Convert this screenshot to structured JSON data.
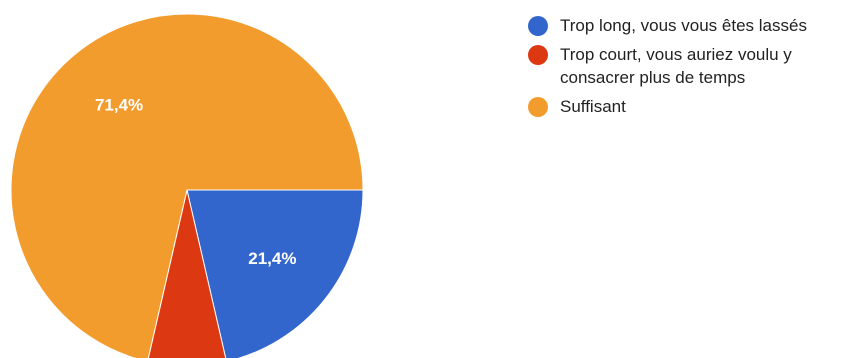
{
  "chart_data": {
    "type": "pie",
    "slices": [
      {
        "label": "Trop long, vous vous êtes lassés",
        "value": 21.4,
        "display": "21,4%",
        "color": "#3366cc"
      },
      {
        "label": "Trop court, vous auriez voulu y consacrer plus de temps",
        "value": 7.2,
        "display": "",
        "color": "#dc3912"
      },
      {
        "label": "Suffisant",
        "value": 71.4,
        "display": "71,4%",
        "color": "#f39c2e"
      }
    ],
    "legend_position": "right"
  }
}
